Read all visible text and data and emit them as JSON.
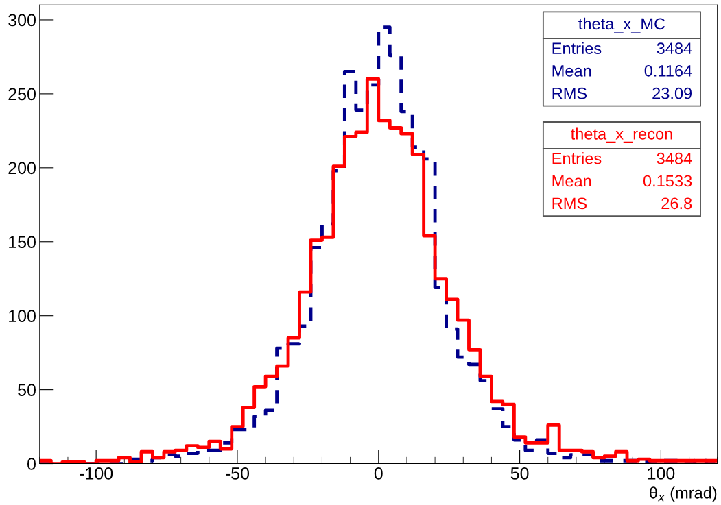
{
  "chart_data": {
    "type": "histogram",
    "xlabel": "θ$_{x}$ (mrad)",
    "bins": [
      -120,
      -116,
      -112,
      -108,
      -104,
      -100,
      -96,
      -92,
      -88,
      -84,
      -80,
      -76,
      -72,
      -68,
      -64,
      -60,
      -56,
      -52,
      -48,
      -44,
      -40,
      -36,
      -32,
      -28,
      -24,
      -20,
      -16,
      -12,
      -8,
      -4,
      0,
      4,
      8,
      12,
      16,
      20,
      24,
      28,
      32,
      36,
      40,
      44,
      48,
      52,
      56,
      60,
      64,
      68,
      72,
      76,
      80,
      84,
      88,
      92,
      96,
      100,
      104,
      108,
      112,
      116,
      120
    ],
    "series": [
      {
        "name": "theta_x_MC",
        "color": "#00008b",
        "line_style": "dashed",
        "values": [
          0,
          0,
          0,
          0,
          0,
          0,
          0,
          0,
          3,
          2,
          4,
          6,
          5,
          7,
          9,
          9,
          14,
          23,
          23,
          32,
          36,
          78,
          81,
          93,
          146,
          162,
          198,
          265,
          239,
          256,
          295,
          276,
          238,
          214,
          206,
          119,
          91,
          72,
          67,
          56,
          37,
          25,
          16,
          9,
          16,
          7,
          4,
          6,
          6,
          2,
          2,
          2,
          2,
          1,
          0,
          2,
          2,
          0,
          2,
          0
        ]
      },
      {
        "name": "theta_x_recon",
        "color": "#ff0000",
        "line_style": "solid",
        "values": [
          2,
          0,
          1,
          1,
          0,
          2,
          2,
          4,
          1,
          8,
          4,
          8,
          9,
          12,
          11,
          15,
          10,
          25,
          38,
          52,
          59,
          66,
          85,
          116,
          151,
          153,
          201,
          221,
          224,
          260,
          232,
          227,
          223,
          209,
          154,
          125,
          111,
          97,
          77,
          59,
          42,
          40,
          18,
          14,
          14,
          26,
          9,
          9,
          8,
          4,
          5,
          8,
          2,
          3,
          2,
          2,
          2,
          2,
          2,
          2
        ]
      }
    ],
    "xlim": [
      -120,
      120
    ],
    "xticks": [
      -100,
      -50,
      0,
      50,
      100
    ],
    "ylim": [
      0,
      310
    ],
    "yticks": [
      0,
      50,
      100,
      150,
      200,
      250,
      300
    ],
    "grid": false,
    "legend": "top right",
    "annotations": [
      "Entries",
      "3484",
      "Mean",
      "0.1164",
      "RMS",
      "23.09",
      "Entries",
      "3484",
      "Mean",
      "0.1533",
      "RMS",
      "26.8"
    ]
  }
}
